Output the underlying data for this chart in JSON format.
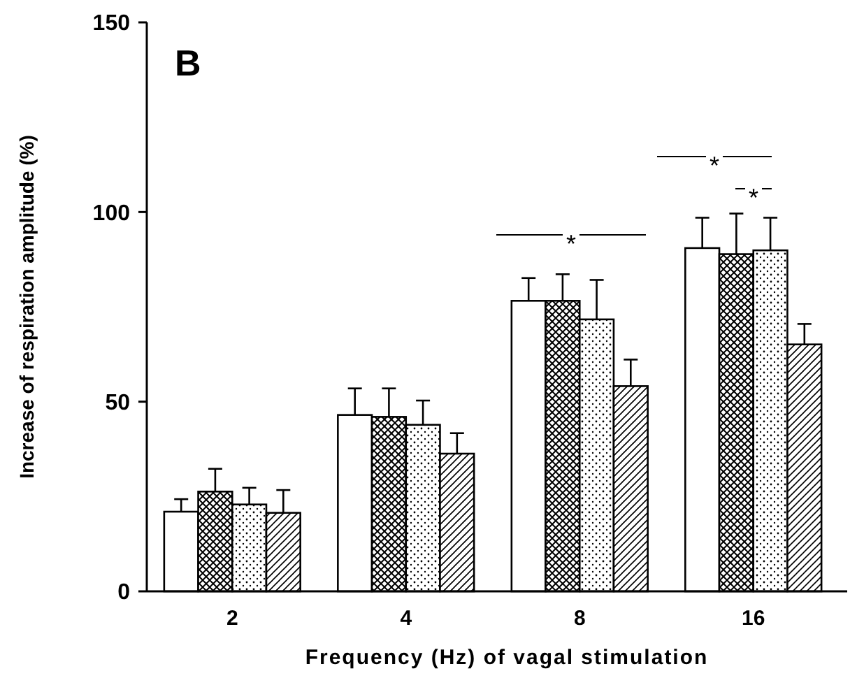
{
  "chart_data": {
    "type": "bar",
    "title": "B",
    "xlabel": "Frequency (Hz) of vagal stimulation",
    "ylabel": "Increase of respiration amplitude (%)",
    "categories": [
      "2",
      "4",
      "8",
      "16"
    ],
    "series": [
      {
        "color": "#ffffff",
        "values": [
          21.0,
          46.5,
          76.6,
          90.5
        ],
        "errors": [
          3.3,
          7,
          6,
          8
        ]
      },
      {
        "color": "#000000",
        "values": [
          26.3,
          46,
          76.6,
          88.9
        ],
        "errors": [
          6,
          7.5,
          7,
          10.7
        ]
      },
      {
        "color": "#000000",
        "values": [
          22.9,
          43.9,
          71.7,
          89.9
        ],
        "errors": [
          4.4,
          6.4,
          10.4,
          8.6
        ]
      },
      {
        "color": "#000000",
        "values": [
          20.7,
          36.3,
          54.1,
          65.1
        ],
        "errors": [
          6,
          5.4,
          7,
          5.4
        ]
      }
    ],
    "ylim": [
      0,
      150
    ],
    "yticks": [
      0,
      50,
      100,
      150
    ],
    "grid": false,
    "annotations": [
      "*",
      "*",
      "*"
    ]
  }
}
